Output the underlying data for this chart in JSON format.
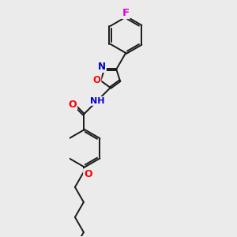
{
  "background_color": "#ebebeb",
  "bond_color": "#1a1a1a",
  "bond_width": 1.4,
  "atom_colors": {
    "O": "#ff0000",
    "N": "#0000cd",
    "F": "#dd00dd",
    "C": "#1a1a1a"
  },
  "font_size": 8.5,
  "figsize": [
    3.0,
    3.0
  ],
  "dpi": 100
}
